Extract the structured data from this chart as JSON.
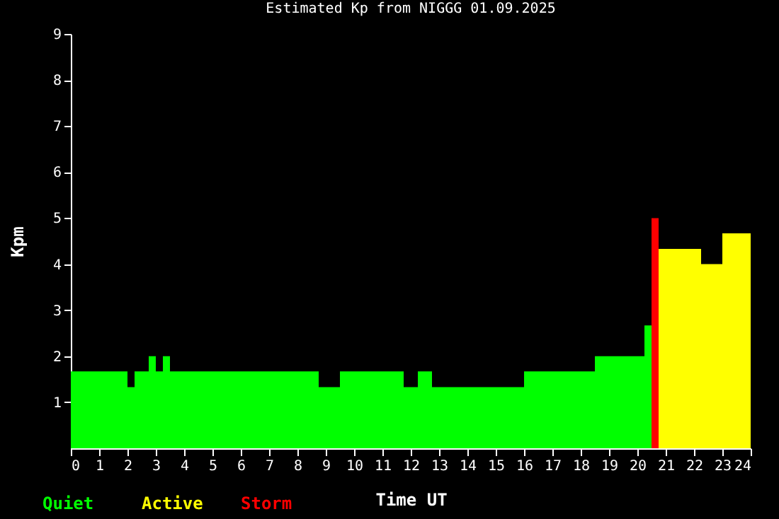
{
  "chart_data": {
    "type": "histogram",
    "title": "Estimated Kp from NIGGG 01.09.2025",
    "xlabel": "Time UT",
    "ylabel": "Kpm",
    "bins": [
      0,
      2,
      2.25,
      2.75,
      3,
      3.25,
      3.5,
      8.75,
      9.5,
      11.75,
      12.25,
      12.75,
      16,
      18.5,
      20.25,
      20.5,
      20.75,
      22.25,
      23,
      24
    ],
    "series": [
      {
        "name": "Quiet",
        "color": "#00ff00",
        "values": [
          1.67,
          1.33,
          1.67,
          2,
          1.67,
          2,
          1.67,
          1.33,
          1.67,
          1.33,
          1.67,
          1.33,
          1.67,
          2,
          2.67,
          null,
          null,
          null,
          null
        ]
      },
      {
        "name": "Active",
        "color": "#ffff00",
        "values": [
          null,
          null,
          null,
          null,
          null,
          null,
          null,
          null,
          null,
          null,
          null,
          null,
          null,
          null,
          null,
          null,
          4.33,
          4,
          4.67
        ]
      },
      {
        "name": "Storm",
        "color": "#ff0000",
        "values": [
          null,
          null,
          null,
          null,
          null,
          null,
          null,
          null,
          null,
          null,
          null,
          null,
          null,
          null,
          null,
          5,
          null,
          null,
          null
        ]
      }
    ],
    "xlim": [
      0,
      24
    ],
    "xticks": [
      0,
      1,
      2,
      3,
      4,
      5,
      6,
      7,
      8,
      9,
      10,
      11,
      12,
      13,
      14,
      15,
      16,
      17,
      18,
      19,
      20,
      21,
      22,
      23,
      24
    ],
    "ylim": [
      0,
      9
    ],
    "yticks": [
      1,
      2,
      3,
      4,
      5,
      6,
      7,
      8,
      9
    ],
    "grid": false,
    "legend": "bottom left"
  }
}
